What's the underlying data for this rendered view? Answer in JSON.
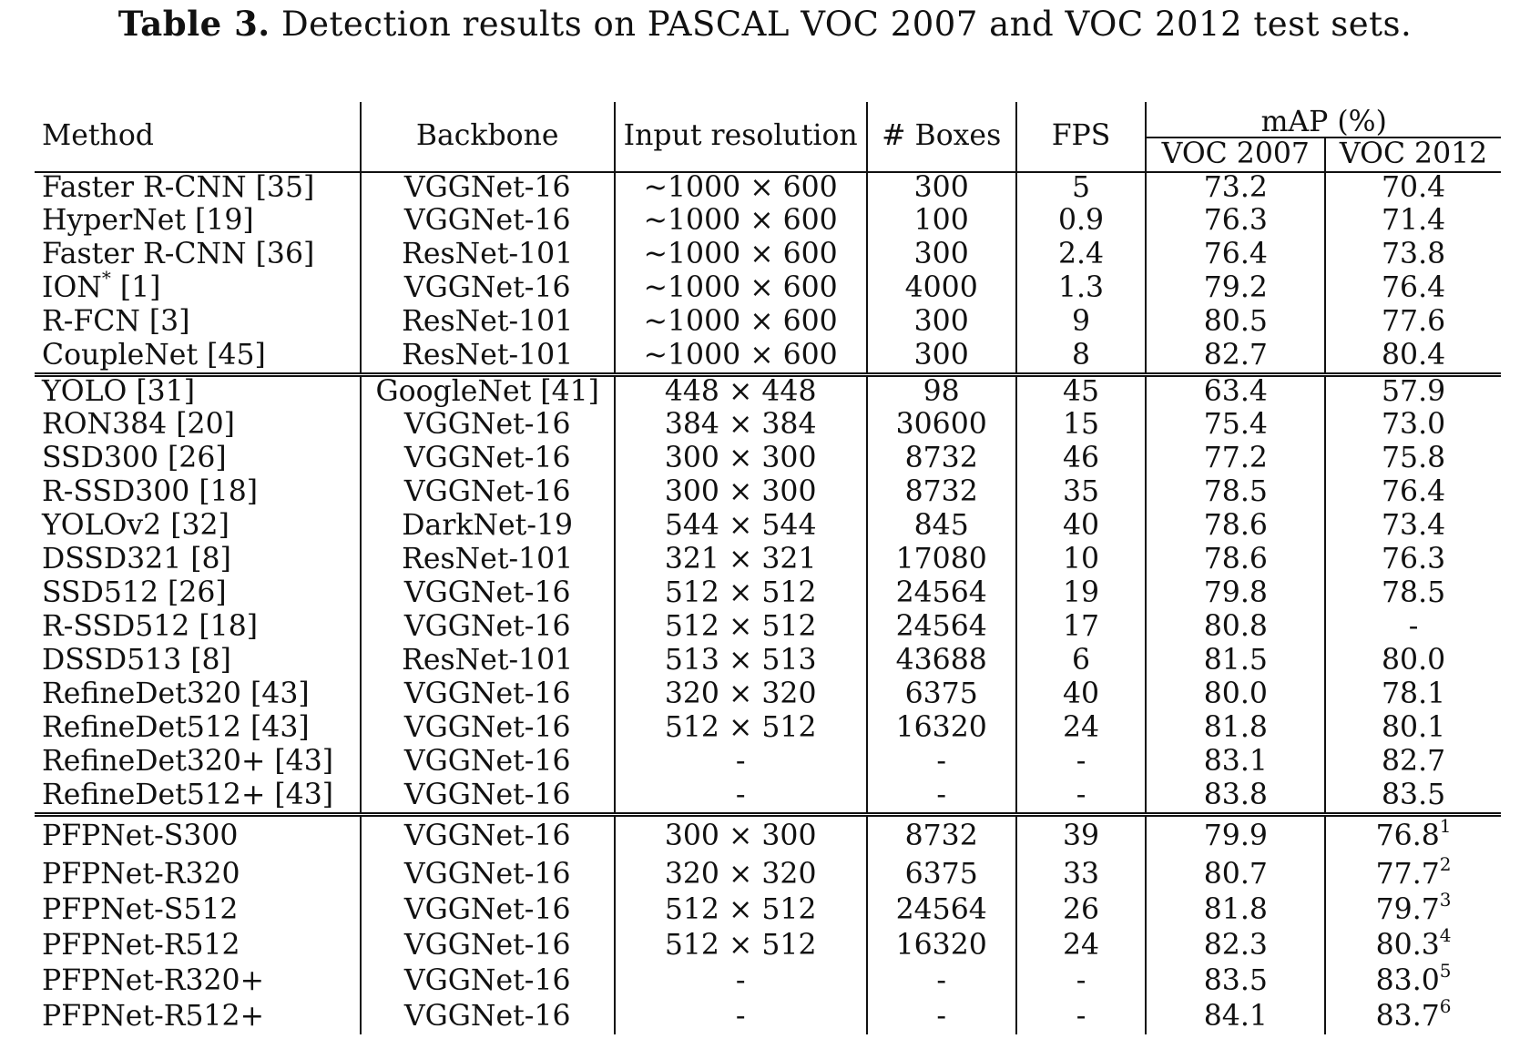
{
  "caption": {
    "label": "Table 3.",
    "text": "Detection results on PASCAL VOC 2007 and VOC 2012 test sets."
  },
  "headers": {
    "method": "Method",
    "backbone": "Backbone",
    "input": "Input resolution",
    "boxes": "# Boxes",
    "fps": "FPS",
    "map": "mAP (%)",
    "voc2007": "VOC 2007",
    "voc2012": "VOC 2012"
  },
  "groups": [
    {
      "rows": [
        {
          "method": "Faster R-CNN [35]",
          "method_sup": "",
          "backbone": "VGGNet-16",
          "input": "~1000 × 600",
          "boxes": "300",
          "fps": "5",
          "voc2007": "73.2",
          "voc2012": "70.4",
          "voc2012_sup": ""
        },
        {
          "method": "HyperNet [19]",
          "method_sup": "",
          "backbone": "VGGNet-16",
          "input": "~1000 × 600",
          "boxes": "100",
          "fps": "0.9",
          "voc2007": "76.3",
          "voc2012": "71.4",
          "voc2012_sup": ""
        },
        {
          "method": "Faster R-CNN [36]",
          "method_sup": "",
          "backbone": "ResNet-101",
          "input": "~1000 × 600",
          "boxes": "300",
          "fps": "2.4",
          "voc2007": "76.4",
          "voc2012": "73.8",
          "voc2012_sup": ""
        },
        {
          "method": "ION",
          "method_sup": "*",
          "method_suffix": " [1]",
          "backbone": "VGGNet-16",
          "input": "~1000 × 600",
          "boxes": "4000",
          "fps": "1.3",
          "voc2007": "79.2",
          "voc2012": "76.4",
          "voc2012_sup": ""
        },
        {
          "method": "R-FCN [3]",
          "method_sup": "",
          "backbone": "ResNet-101",
          "input": "~1000 × 600",
          "boxes": "300",
          "fps": "9",
          "voc2007": "80.5",
          "voc2012": "77.6",
          "voc2012_sup": ""
        },
        {
          "method": "CoupleNet [45]",
          "method_sup": "",
          "backbone": "ResNet-101",
          "input": "~1000 × 600",
          "boxes": "300",
          "fps": "8",
          "voc2007": "82.7",
          "voc2012": "80.4",
          "voc2012_sup": ""
        }
      ]
    },
    {
      "rows": [
        {
          "method": "YOLO [31]",
          "method_sup": "",
          "backbone": "GoogleNet [41]",
          "input": "448 × 448",
          "boxes": "98",
          "fps": "45",
          "voc2007": "63.4",
          "voc2012": "57.9",
          "voc2012_sup": ""
        },
        {
          "method": "RON384 [20]",
          "method_sup": "",
          "backbone": "VGGNet-16",
          "input": "384 × 384",
          "boxes": "30600",
          "fps": "15",
          "voc2007": "75.4",
          "voc2012": "73.0",
          "voc2012_sup": ""
        },
        {
          "method": "SSD300 [26]",
          "method_sup": "",
          "backbone": "VGGNet-16",
          "input": "300 × 300",
          "boxes": "8732",
          "fps": "46",
          "voc2007": "77.2",
          "voc2012": "75.8",
          "voc2012_sup": ""
        },
        {
          "method": "R-SSD300 [18]",
          "method_sup": "",
          "backbone": "VGGNet-16",
          "input": "300 × 300",
          "boxes": "8732",
          "fps": "35",
          "voc2007": "78.5",
          "voc2012": "76.4",
          "voc2012_sup": ""
        },
        {
          "method": "YOLOv2 [32]",
          "method_sup": "",
          "backbone": "DarkNet-19",
          "input": "544 × 544",
          "boxes": "845",
          "fps": "40",
          "voc2007": "78.6",
          "voc2012": "73.4",
          "voc2012_sup": ""
        },
        {
          "method": "DSSD321 [8]",
          "method_sup": "",
          "backbone": "ResNet-101",
          "input": "321 × 321",
          "boxes": "17080",
          "fps": "10",
          "voc2007": "78.6",
          "voc2012": "76.3",
          "voc2012_sup": ""
        },
        {
          "method": "SSD512 [26]",
          "method_sup": "",
          "backbone": "VGGNet-16",
          "input": "512 × 512",
          "boxes": "24564",
          "fps": "19",
          "voc2007": "79.8",
          "voc2012": "78.5",
          "voc2012_sup": ""
        },
        {
          "method": "R-SSD512 [18]",
          "method_sup": "",
          "backbone": "VGGNet-16",
          "input": "512 × 512",
          "boxes": "24564",
          "fps": "17",
          "voc2007": "80.8",
          "voc2012": "-",
          "voc2012_sup": ""
        },
        {
          "method": "DSSD513 [8]",
          "method_sup": "",
          "backbone": "ResNet-101",
          "input": "513 × 513",
          "boxes": "43688",
          "fps": "6",
          "voc2007": "81.5",
          "voc2012": "80.0",
          "voc2012_sup": ""
        },
        {
          "method": "RefineDet320 [43]",
          "method_sup": "",
          "backbone": "VGGNet-16",
          "input": "320 × 320",
          "boxes": "6375",
          "fps": "40",
          "voc2007": "80.0",
          "voc2012": "78.1",
          "voc2012_sup": ""
        },
        {
          "method": "RefineDet512 [43]",
          "method_sup": "",
          "backbone": "VGGNet-16",
          "input": "512 × 512",
          "boxes": "16320",
          "fps": "24",
          "voc2007": "81.8",
          "voc2012": "80.1",
          "voc2012_sup": ""
        },
        {
          "method": "RefineDet320+ [43]",
          "method_sup": "",
          "backbone": "VGGNet-16",
          "input": "-",
          "boxes": "-",
          "fps": "-",
          "voc2007": "83.1",
          "voc2012": "82.7",
          "voc2012_sup": ""
        },
        {
          "method": "RefineDet512+ [43]",
          "method_sup": "",
          "backbone": "VGGNet-16",
          "input": "-",
          "boxes": "-",
          "fps": "-",
          "voc2007": "83.8",
          "voc2012": "83.5",
          "voc2012_sup": ""
        }
      ]
    },
    {
      "rows": [
        {
          "method": "PFPNet-S300",
          "method_sup": "",
          "backbone": "VGGNet-16",
          "input": "300 × 300",
          "boxes": "8732",
          "fps": "39",
          "voc2007": "79.9",
          "voc2012": "76.8",
          "voc2012_sup": "1"
        },
        {
          "method": "PFPNet-R320",
          "method_sup": "",
          "backbone": "VGGNet-16",
          "input": "320 × 320",
          "boxes": "6375",
          "fps": "33",
          "voc2007": "80.7",
          "voc2012": "77.7",
          "voc2012_sup": "2"
        },
        {
          "method": "PFPNet-S512",
          "method_sup": "",
          "backbone": "VGGNet-16",
          "input": "512 × 512",
          "boxes": "24564",
          "fps": "26",
          "voc2007": "81.8",
          "voc2012": "79.7",
          "voc2012_sup": "3"
        },
        {
          "method": "PFPNet-R512",
          "method_sup": "",
          "backbone": "VGGNet-16",
          "input": "512 × 512",
          "boxes": "16320",
          "fps": "24",
          "voc2007": "82.3",
          "voc2012": "80.3",
          "voc2012_sup": "4"
        },
        {
          "method": "PFPNet-R320+",
          "method_sup": "",
          "backbone": "VGGNet-16",
          "input": "-",
          "boxes": "-",
          "fps": "-",
          "voc2007": "83.5",
          "voc2012": "83.0",
          "voc2012_sup": "5"
        },
        {
          "method": "PFPNet-R512+",
          "method_sup": "",
          "backbone": "VGGNet-16",
          "input": "-",
          "boxes": "-",
          "fps": "-",
          "voc2007": "84.1",
          "voc2012": "83.7",
          "voc2012_sup": "6",
          "bold": true
        }
      ]
    }
  ]
}
